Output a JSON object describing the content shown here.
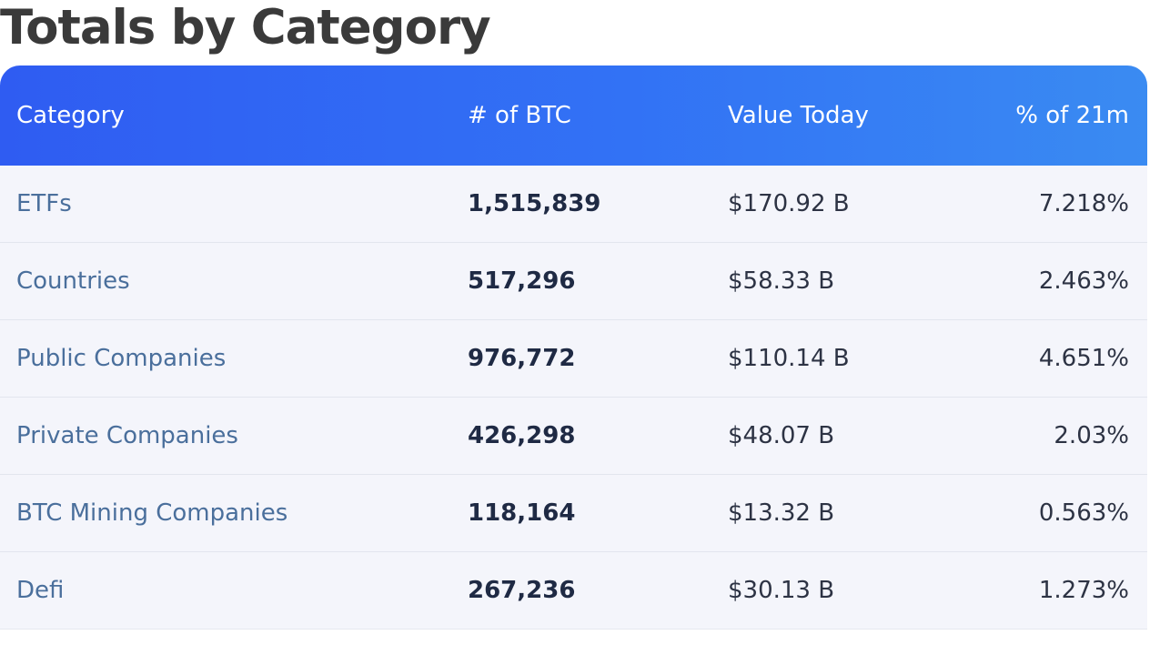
{
  "title": "Totals by Category",
  "table": {
    "headers": {
      "category": "Category",
      "btc": "# of BTC",
      "value": "Value Today",
      "percent": "% of 21m"
    },
    "rows": [
      {
        "category": "ETFs",
        "btc": "1,515,839",
        "value": "$170.92 B",
        "percent": "7.218%"
      },
      {
        "category": "Countries",
        "btc": "517,296",
        "value": "$58.33 B",
        "percent": "2.463%"
      },
      {
        "category": "Public Companies",
        "btc": "976,772",
        "value": "$110.14 B",
        "percent": "4.651%"
      },
      {
        "category": "Private Companies",
        "btc": "426,298",
        "value": "$48.07 B",
        "percent": "2.03%"
      },
      {
        "category": "BTC Mining Companies",
        "btc": "118,164",
        "value": "$13.32 B",
        "percent": "0.563%"
      },
      {
        "category": "Defi",
        "btc": "267,236",
        "value": "$30.13 B",
        "percent": "1.273%"
      }
    ]
  },
  "colors": {
    "header_gradient_start": "#2f5cf2",
    "header_gradient_end": "#3a8bf2",
    "category_text": "#4a6f9c",
    "row_background": "#f4f5fb"
  }
}
